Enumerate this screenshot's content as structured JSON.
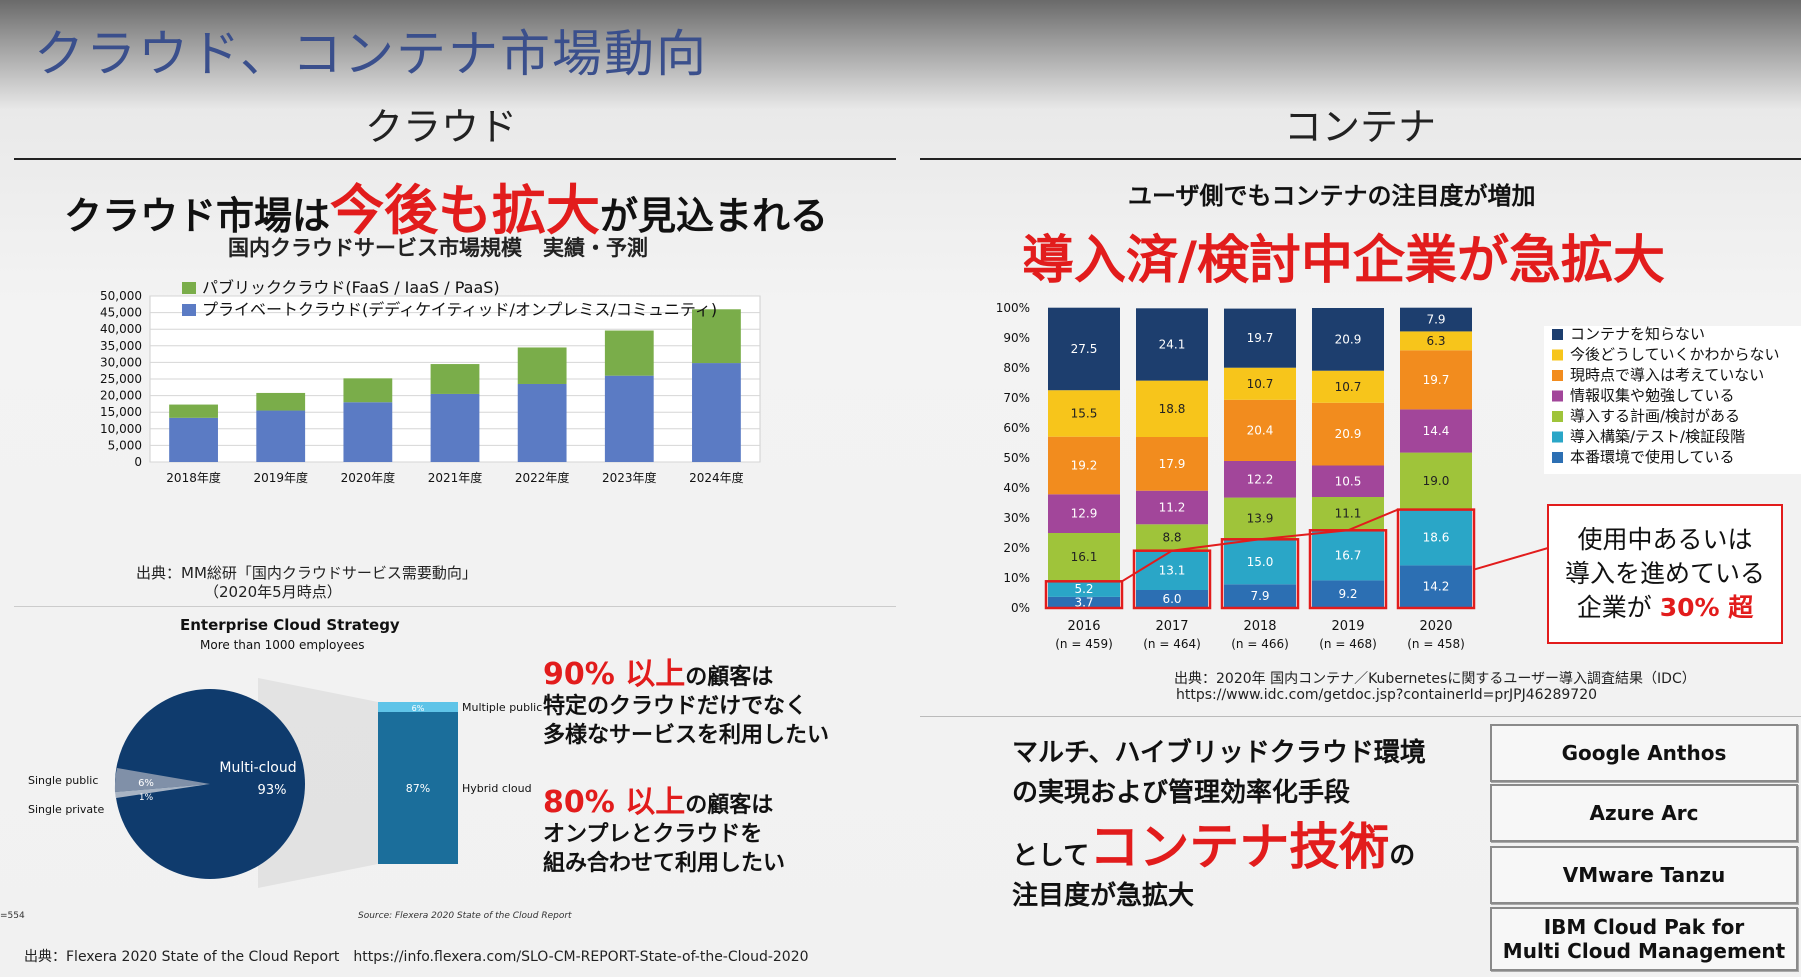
{
  "slide": {
    "title": "クラウド、コンテナ市場動向"
  },
  "left": {
    "heading": "クラウド",
    "headline_pre": "クラウド市場は",
    "headline_em": "今後も拡大",
    "headline_post": "が見込まれる",
    "chart_title": "国内クラウドサービス市場規模　実績・予測",
    "legend_public": "パブリッククラウド(FaaS / IaaS / PaaS)",
    "legend_private": "プライベートクラウド(デディケイティッド/オンプレミス/コミュニティ)",
    "source1": "出典：MM総研「国内クラウドサービス需要動向」",
    "source2": "（2020年5月時点）",
    "strategy_title": "Enterprise Cloud Strategy",
    "strategy_sub": "More than 1000 employees",
    "pie_main_label": "Multi-cloud",
    "pie_main_value": "93%",
    "pie_single_public_label": "Single public",
    "pie_single_public_value": "6%",
    "pie_single_private_label": "Single private",
    "pie_single_private_value": "1%",
    "bar_multiple_public_label": "Multiple public",
    "bar_multiple_public_value": "6%",
    "bar_hybrid_label": "Hybrid cloud",
    "bar_hybrid_value": "87%",
    "n_label": "=554",
    "flexera_source": "Source: Flexera 2020 State of the Cloud Report",
    "stat1_num": "90% 以上",
    "stat1_tail": "の顧客は",
    "stat1_l2": "特定のクラウドだけでなく",
    "stat1_l3": "多様なサービスを利用したい",
    "stat2_num": "80% 以上",
    "stat2_tail": "の顧客は",
    "stat2_l2": "オンプレとクラウドを",
    "stat2_l3": "組み合わせて利用したい",
    "footer": "出典：Flexera 2020 State of the Cloud Report　https://info.flexera.com/SLO-CM-REPORT-State-of-the-Cloud-2020"
  },
  "right": {
    "heading": "コンテナ",
    "sub_headline": "ユーザ側でもコンテナの注目度が増加",
    "headline": "導入済/検討中企業が急拡大",
    "callout_l1": "使用中あるいは",
    "callout_l2": "導入を進めている",
    "callout_l3_pre": "企業が",
    "callout_l3_em": "30% 超",
    "source1": "出典：2020年 国内コンテナ／Kubernetesに関するユーザー導入調査結果（IDC）",
    "source2": "https://www.idc.com/getdoc.jsp?containerId=prJPJ46289720",
    "summary_l1": "マルチ、ハイブリッドクラウド環境",
    "summary_l2": "の実現および管理効率化手段",
    "summary_l3_pre": "として",
    "summary_l3_em": "コンテナ技術",
    "summary_l3_post": "の",
    "summary_l4": "注目度が急拡大",
    "tech": [
      "Google Anthos",
      "Azure Arc",
      "VMware Tanzu"
    ],
    "tech4_l1": "IBM Cloud Pak for",
    "tech4_l2": "Multi Cloud Management"
  },
  "chart_data": [
    {
      "type": "bar",
      "stacked": true,
      "title": "国内クラウドサービス市場規模　実績・予測",
      "categories": [
        "2018年度",
        "2019年度",
        "2020年度",
        "2021年度",
        "2022年度",
        "2023年度",
        "2024年度"
      ],
      "ylim": [
        0,
        50000
      ],
      "yticks": [
        "0",
        "5,000",
        "10,000",
        "15,000",
        "20,000",
        "25,000",
        "30,000",
        "35,000",
        "40,000",
        "45,000",
        "50,000"
      ],
      "series": [
        {
          "name": "プライベートクラウド(デディケイティッド/オンプレミス/コミュニティ)",
          "color": "#5b7bc4",
          "values": [
            13300,
            15500,
            18000,
            20500,
            23500,
            26000,
            29800
          ]
        },
        {
          "name": "パブリッククラウド(FaaS / IaaS / PaaS)",
          "color": "#7aad4a",
          "values": [
            4000,
            5300,
            7200,
            9000,
            11000,
            13600,
            16200
          ]
        }
      ],
      "grid": true,
      "legend": "top-left"
    },
    {
      "type": "bar",
      "stacked": true,
      "percent": true,
      "categories": [
        "2016",
        "2017",
        "2018",
        "2019",
        "2020"
      ],
      "sample_labels": [
        "(n = 459)",
        "(n = 464)",
        "(n = 466)",
        "(n = 468)",
        "(n = 458)"
      ],
      "yticks": [
        "0%",
        "10%",
        "20%",
        "30%",
        "40%",
        "50%",
        "60%",
        "70%",
        "80%",
        "90%",
        "100%"
      ],
      "ylim": [
        0,
        100
      ],
      "series": [
        {
          "name": "本番環境で使用している",
          "color": "#2c6fb3",
          "values": [
            3.7,
            6.0,
            7.9,
            9.2,
            14.2
          ]
        },
        {
          "name": "導入構築/テスト/検証段階",
          "color": "#2aa6c7",
          "values": [
            5.2,
            13.1,
            15.0,
            16.7,
            18.6
          ]
        },
        {
          "name": "導入する計画/検討がある",
          "color": "#9fc43a",
          "values": [
            16.1,
            8.8,
            13.9,
            11.1,
            19.0
          ]
        },
        {
          "name": "情報収集や勉強している",
          "color": "#a2469a",
          "values": [
            12.9,
            11.2,
            12.2,
            10.5,
            14.4
          ]
        },
        {
          "name": "現時点で導入は考えていない",
          "color": "#f28c1e",
          "values": [
            19.2,
            17.9,
            20.4,
            20.9,
            19.7
          ]
        },
        {
          "name": "今後どうしていくかわからない",
          "color": "#f7c51b",
          "values": [
            15.5,
            18.8,
            10.7,
            10.7,
            6.3
          ]
        },
        {
          "name": "コンテナを知らない",
          "color": "#1d3e6e",
          "values": [
            27.5,
            24.1,
            19.7,
            20.9,
            7.9
          ]
        }
      ],
      "legend": "right",
      "trend_line": "red"
    }
  ]
}
